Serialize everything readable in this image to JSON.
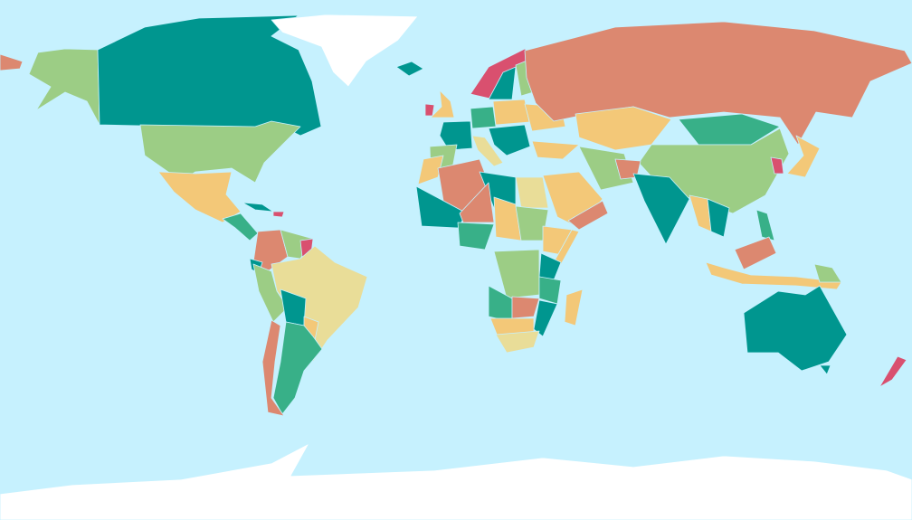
{
  "map": {
    "type": "world political choropleth",
    "projection": "equirectangular-like",
    "text_labels": [],
    "colors": {
      "ocean": "#c6f1fe",
      "ice": "#ffffff",
      "teal": "#00968f",
      "green": "#38b088",
      "lightgreen": "#9ccd85",
      "yellow": "#f3c878",
      "paleyellow": "#e9dd98",
      "salmon": "#dc8870",
      "pink": "#d9506f"
    }
  }
}
